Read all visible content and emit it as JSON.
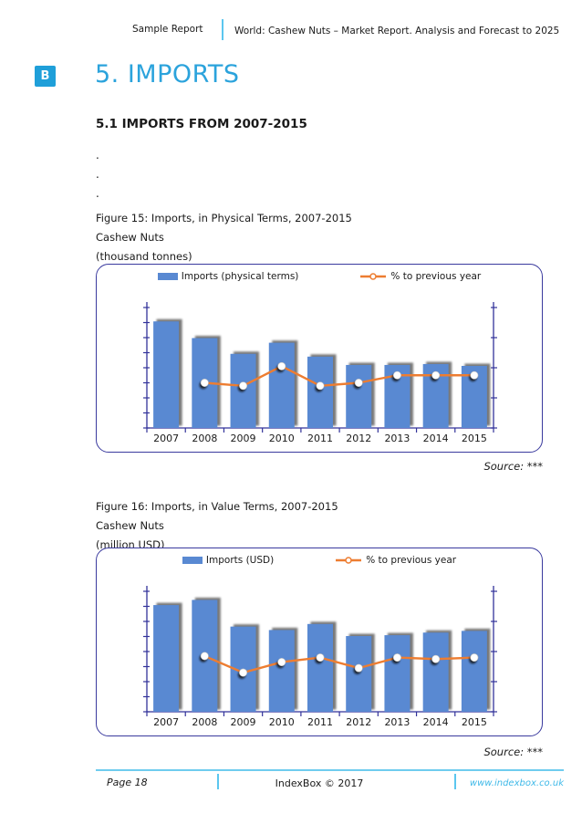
{
  "colors": {
    "accent": "#2BA3DC",
    "accent_light": "#5BC6EF",
    "bar_fill": "#5989D2",
    "bar_shadow": "#6A6A6A",
    "line": "#ED7D31",
    "axis": "#32329A",
    "chart_border": "#3A3A9E",
    "link": "#3FB9E8"
  },
  "header": {
    "left": "Sample Report",
    "right": "World: Cashew Nuts – Market Report. Analysis and Forecast to 2025"
  },
  "section": {
    "badge": "B",
    "title": "5. IMPORTS"
  },
  "subsection": {
    "title": "5.1 IMPORTS FROM 2007-2015"
  },
  "dots": [
    ".",
    ".",
    "."
  ],
  "figures": [
    {
      "caption": [
        "Figure 15: Imports, in Physical Terms, 2007-2015",
        "Cashew Nuts",
        "(thousand tonnes)"
      ],
      "legend": [
        {
          "label": "Imports (physical terms)"
        },
        {
          "label": "% to previous year"
        }
      ],
      "source": "Source: ***"
    },
    {
      "caption": [
        "Figure 16: Imports, in Value Terms, 2007-2015",
        "Cashew Nuts",
        "(million USD)"
      ],
      "legend": [
        {
          "label": "Imports (USD)"
        },
        {
          "label": "% to previous year"
        }
      ],
      "source": "Source: ***"
    }
  ],
  "chart_data": [
    {
      "type": "bar",
      "title": "Figure 15: Imports, in Physical Terms, 2007-2015 — Cashew Nuts (thousand tonnes)",
      "categories": [
        "2007",
        "2008",
        "2009",
        "2010",
        "2011",
        "2012",
        "2013",
        "2014",
        "2015"
      ],
      "series": [
        {
          "name": "Imports (physical terms)",
          "type": "bar",
          "axis": "left",
          "values": [
            115,
            97,
            80,
            92,
            77,
            68,
            68,
            69,
            67
          ]
        },
        {
          "name": "% to previous year",
          "type": "line",
          "axis": "right",
          "values": [
            null,
            90,
            88,
            101,
            88,
            90,
            95,
            95,
            95
          ]
        }
      ],
      "left_ylim": [
        0,
        130
      ],
      "right_ylim": [
        60,
        140
      ],
      "axis_tick_labels_shown": false,
      "legend_position": "top",
      "grid": false
    },
    {
      "type": "bar",
      "title": "Figure 16: Imports, in Value Terms, 2007-2015 — Cashew Nuts (million USD)",
      "categories": [
        "2007",
        "2008",
        "2009",
        "2010",
        "2011",
        "2012",
        "2013",
        "2014",
        "2015"
      ],
      "series": [
        {
          "name": "Imports (USD)",
          "type": "bar",
          "axis": "left",
          "values": [
            124,
            130,
            99,
            95,
            102,
            88,
            89,
            92,
            94
          ]
        },
        {
          "name": "% to previous year",
          "type": "line",
          "axis": "right",
          "values": [
            null,
            97,
            86,
            93,
            96,
            89,
            96,
            95,
            96
          ]
        }
      ],
      "left_ylim": [
        0,
        140
      ],
      "right_ylim": [
        60,
        140
      ],
      "axis_tick_labels_shown": false,
      "legend_position": "top",
      "grid": false
    }
  ],
  "footer": {
    "page": "Page 18",
    "copyright": "IndexBox © 2017",
    "website": "www.indexbox.co.uk"
  }
}
